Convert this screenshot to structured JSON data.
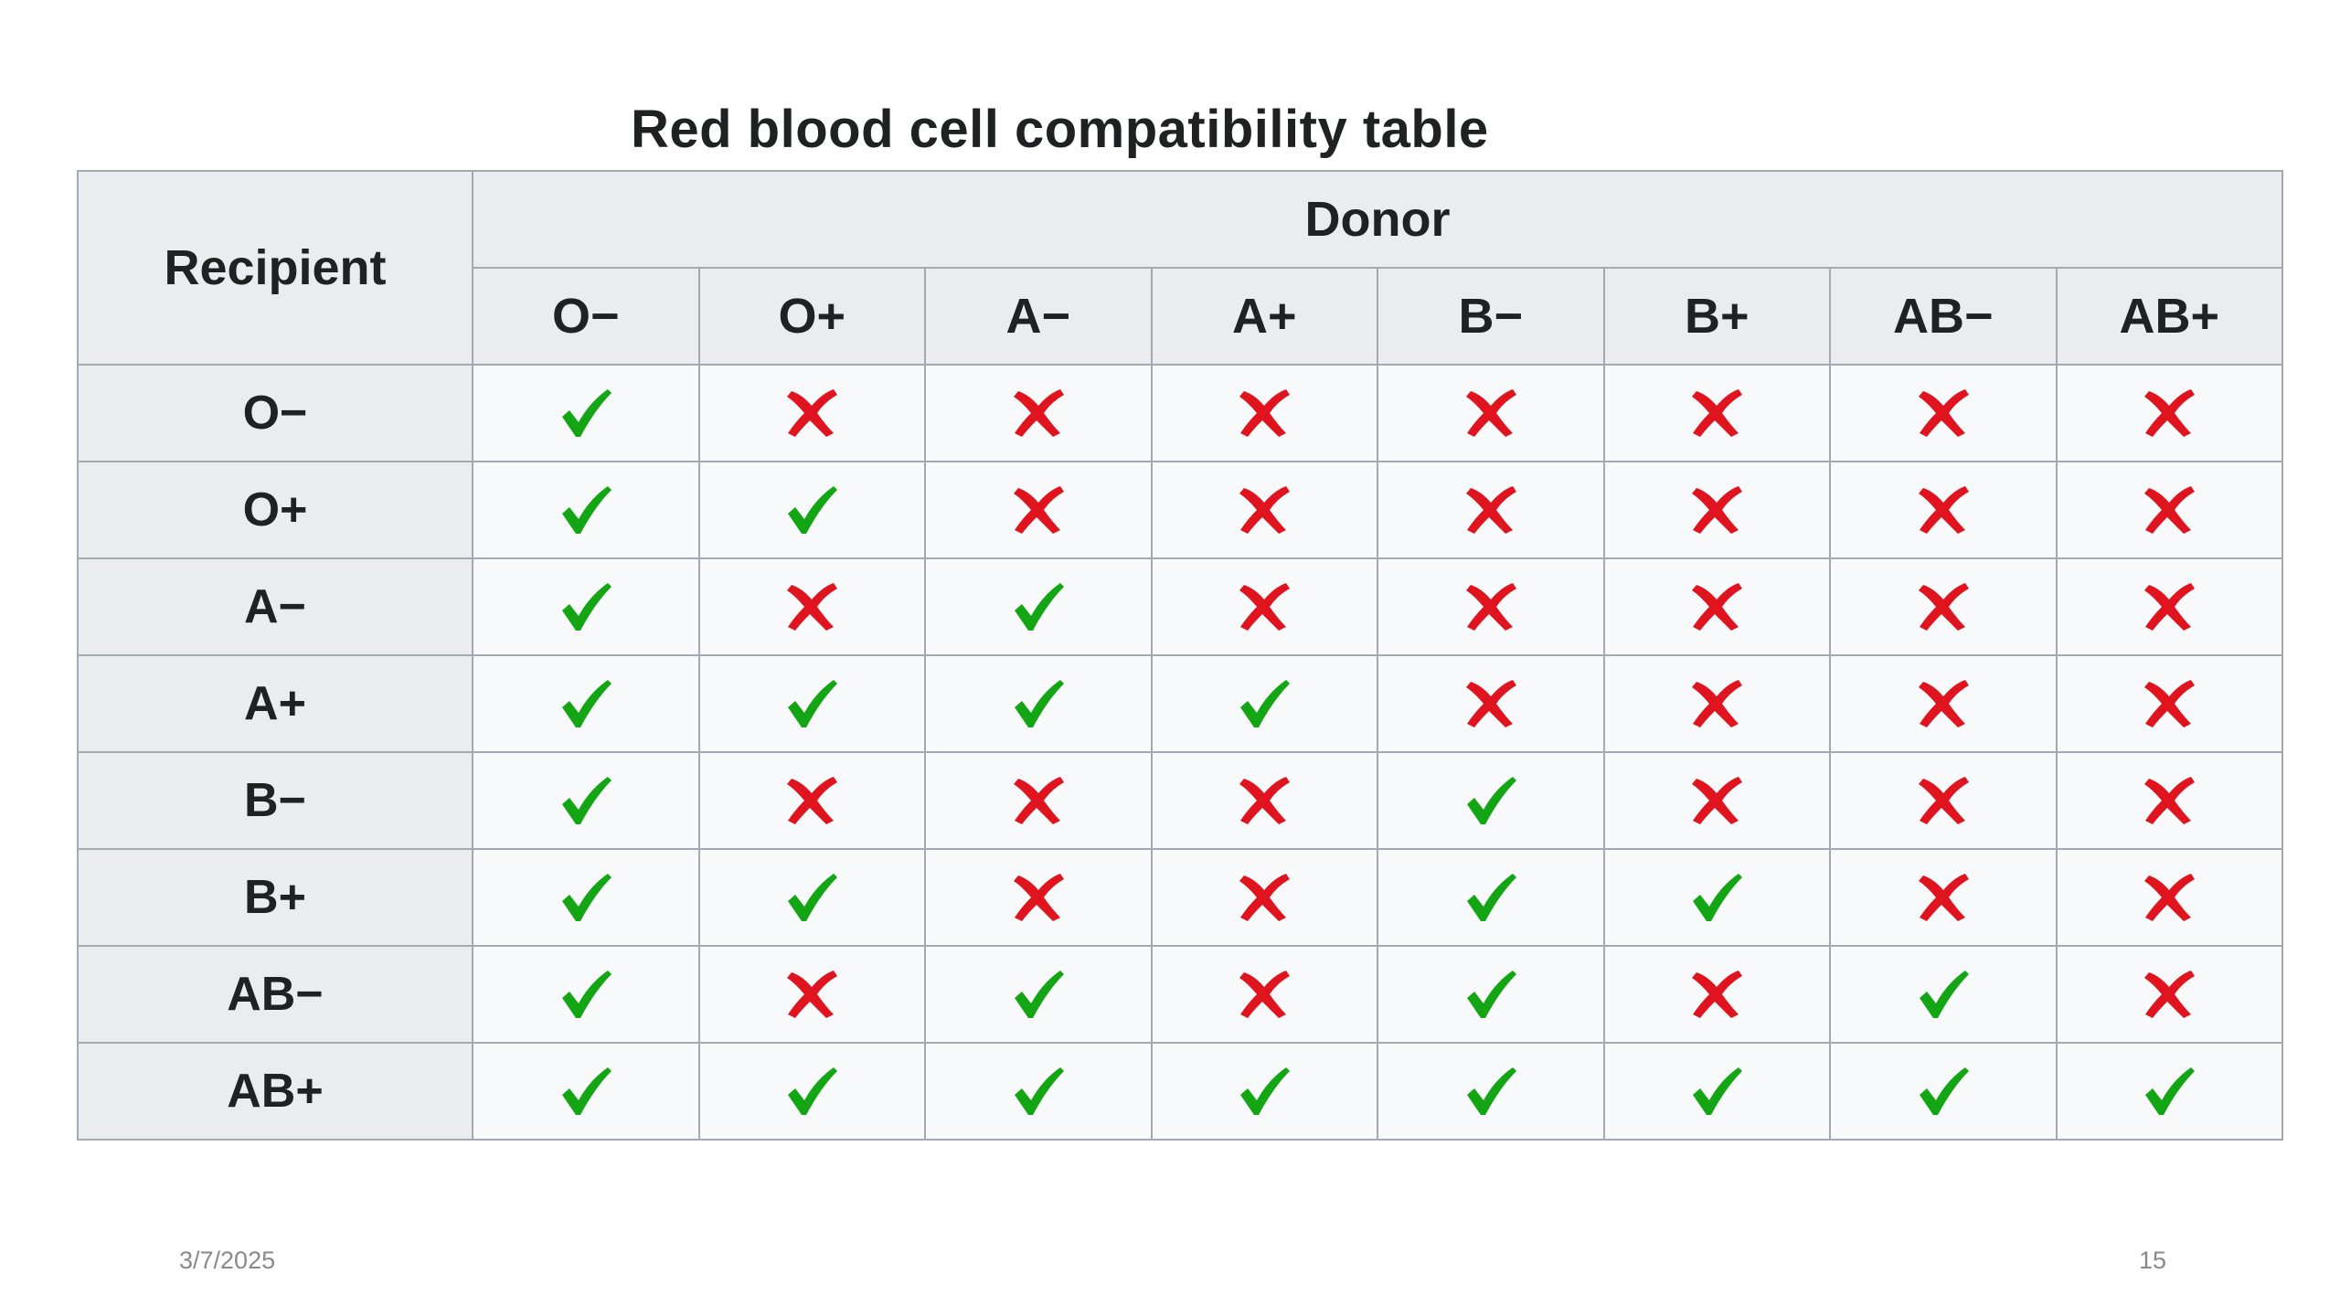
{
  "title": "Red blood cell compatibility table",
  "table": {
    "recipient_header": "Recipient",
    "donor_header": "Donor",
    "donors": [
      "O−",
      "O+",
      "A−",
      "A+",
      "B−",
      "B+",
      "AB−",
      "AB+"
    ],
    "rows": [
      {
        "recipient": "O−",
        "compatible": [
          true,
          false,
          false,
          false,
          false,
          false,
          false,
          false
        ]
      },
      {
        "recipient": "O+",
        "compatible": [
          true,
          true,
          false,
          false,
          false,
          false,
          false,
          false
        ]
      },
      {
        "recipient": "A−",
        "compatible": [
          true,
          false,
          true,
          false,
          false,
          false,
          false,
          false
        ]
      },
      {
        "recipient": "A+",
        "compatible": [
          true,
          true,
          true,
          true,
          false,
          false,
          false,
          false
        ]
      },
      {
        "recipient": "B−",
        "compatible": [
          true,
          false,
          false,
          false,
          true,
          false,
          false,
          false
        ]
      },
      {
        "recipient": "B+",
        "compatible": [
          true,
          true,
          false,
          false,
          true,
          true,
          false,
          false
        ]
      },
      {
        "recipient": "AB−",
        "compatible": [
          true,
          false,
          true,
          false,
          true,
          false,
          true,
          false
        ]
      },
      {
        "recipient": "AB+",
        "compatible": [
          true,
          true,
          true,
          true,
          true,
          true,
          true,
          true
        ]
      }
    ],
    "icons": {
      "compatible": "check-icon",
      "incompatible": "cross-icon"
    },
    "colors": {
      "check": "#14a514",
      "cross": "#e0141e",
      "header_bg": "#eaecf0",
      "cell_bg": "#f8f9fa",
      "border": "#a2a9b1"
    }
  },
  "footer": {
    "date": "3/7/2025",
    "page_number": "15"
  }
}
